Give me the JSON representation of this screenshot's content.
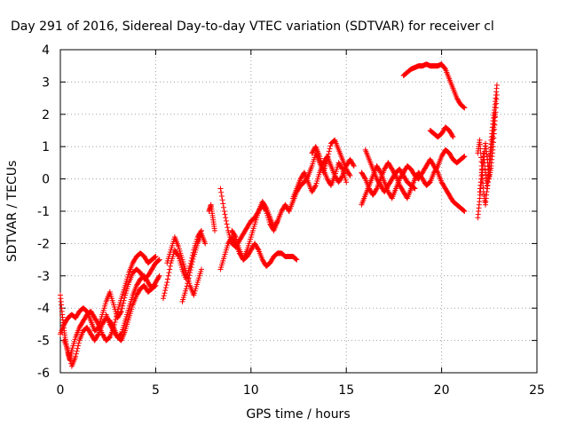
{
  "chart_data": {
    "type": "scatter",
    "title": "Day 291 of 2016, Sidereal Day-to-day VTEC variation (SDTVAR) for receiver cl",
    "xlabel": "GPS time / hours",
    "ylabel": "SDTVAR / TECUs",
    "xlim": [
      0,
      25
    ],
    "ylim": [
      -6,
      4
    ],
    "xticks": [
      0,
      5,
      10,
      15,
      20,
      25
    ],
    "yticks": [
      -6,
      -5,
      -4,
      -3,
      -2,
      -1,
      0,
      1,
      2,
      3,
      4
    ],
    "grid": true,
    "legend": "none",
    "marker": "+",
    "color": "#ff0000",
    "tracks": [
      {
        "x": [
          0.0,
          0.1,
          0.2,
          0.3,
          0.4,
          0.5,
          0.6,
          0.8,
          1.0,
          1.2,
          1.4,
          1.6,
          1.8,
          2.0,
          2.2,
          2.4,
          2.6,
          2.8,
          3.0,
          3.2,
          3.4,
          3.6,
          3.8,
          4.0,
          4.2,
          4.4,
          4.6,
          4.8,
          5.0
        ],
        "y": [
          -3.6,
          -4.2,
          -4.7,
          -5.1,
          -5.4,
          -5.6,
          -5.3,
          -4.9,
          -4.6,
          -4.4,
          -4.2,
          -4.1,
          -4.3,
          -4.5,
          -4.8,
          -5.0,
          -4.9,
          -4.6,
          -4.1,
          -3.7,
          -3.3,
          -2.9,
          -2.6,
          -2.4,
          -2.3,
          -2.4,
          -2.6,
          -2.5,
          -2.4
        ]
      },
      {
        "x": [
          0.0,
          0.2,
          0.4,
          0.6,
          0.8,
          1.0,
          1.2,
          1.4,
          1.6,
          1.8,
          2.0,
          2.2,
          2.4,
          2.6,
          2.8,
          3.0,
          3.2,
          3.4,
          3.6,
          3.8,
          4.0,
          4.2,
          4.4,
          4.6,
          4.8,
          5.0,
          5.2
        ],
        "y": [
          -4.8,
          -4.5,
          -4.3,
          -4.2,
          -4.3,
          -4.1,
          -4.0,
          -4.1,
          -4.4,
          -4.7,
          -4.6,
          -4.2,
          -3.8,
          -3.5,
          -3.9,
          -4.3,
          -4.1,
          -3.6,
          -3.2,
          -2.9,
          -2.8,
          -2.9,
          -3.1,
          -3.0,
          -2.8,
          -2.6,
          -2.5
        ]
      },
      {
        "x": [
          0.2,
          0.4,
          0.6,
          0.8,
          1.0,
          1.2,
          1.4,
          1.6,
          1.8,
          2.0,
          2.2,
          2.4,
          2.6,
          2.8,
          3.0,
          3.2,
          3.4,
          3.6,
          3.8,
          4.0,
          4.2,
          4.4,
          4.6,
          4.8,
          5.0,
          5.2
        ],
        "y": [
          -5.0,
          -5.3,
          -5.8,
          -5.5,
          -5.0,
          -4.7,
          -4.6,
          -4.8,
          -5.0,
          -4.8,
          -4.5,
          -4.3,
          -4.4,
          -4.6,
          -4.9,
          -5.0,
          -4.7,
          -4.3,
          -3.9,
          -3.6,
          -3.4,
          -3.3,
          -3.5,
          -3.4,
          -3.2,
          -3.0
        ]
      },
      {
        "x": [
          2.4,
          2.6,
          2.8,
          3.0,
          3.2,
          3.4,
          3.6,
          3.8,
          4.0,
          4.2,
          4.4,
          4.6,
          4.8,
          5.0
        ],
        "y": [
          -4.2,
          -4.5,
          -4.7,
          -4.9,
          -4.8,
          -4.4,
          -4.0,
          -3.6,
          -3.3,
          -3.1,
          -3.0,
          -3.2,
          -3.4,
          -3.3
        ]
      },
      {
        "x": [
          5.4,
          5.6,
          5.8,
          6.0,
          6.2,
          6.4,
          6.6,
          6.8,
          7.0,
          7.2,
          7.4
        ],
        "y": [
          -3.7,
          -3.2,
          -2.6,
          -2.2,
          -2.4,
          -2.8,
          -3.1,
          -2.7,
          -2.2,
          -1.8,
          -1.6
        ]
      },
      {
        "x": [
          5.6,
          5.8,
          6.0,
          6.2,
          6.4,
          6.6,
          6.8,
          7.0,
          7.2,
          7.4
        ],
        "y": [
          -2.6,
          -2.2,
          -1.8,
          -2.1,
          -2.5,
          -2.9,
          -3.3,
          -3.6,
          -3.2,
          -2.8
        ]
      },
      {
        "x": [
          6.4,
          6.6,
          6.8,
          7.0,
          7.2,
          7.4,
          7.6
        ],
        "y": [
          -3.8,
          -3.4,
          -2.9,
          -2.4,
          -2.0,
          -1.7,
          -2.0
        ]
      },
      {
        "x": [
          7.8,
          7.9,
          8.0,
          8.1
        ],
        "y": [
          -1.0,
          -0.8,
          -1.2,
          -1.6
        ]
      },
      {
        "x": [
          8.4,
          8.6,
          8.8,
          9.0,
          9.2,
          9.4,
          9.6,
          9.8,
          10.0,
          10.2,
          10.4,
          10.6,
          10.8,
          11.0,
          11.2,
          11.4
        ],
        "y": [
          -0.3,
          -1.0,
          -1.6,
          -2.0,
          -2.1,
          -1.9,
          -1.7,
          -1.5,
          -1.3,
          -1.2,
          -1.0,
          -0.8,
          -1.0,
          -1.4,
          -1.6,
          -1.3
        ]
      },
      {
        "x": [
          8.4,
          8.6,
          8.8,
          9.0,
          9.2,
          9.4,
          9.6,
          9.8,
          10.0,
          10.2,
          10.4,
          10.6,
          10.8,
          11.0,
          11.2,
          11.4,
          11.6,
          11.8,
          12.0,
          12.2,
          12.4
        ],
        "y": [
          -2.8,
          -2.4,
          -2.0,
          -1.8,
          -2.0,
          -2.3,
          -2.5,
          -2.4,
          -2.2,
          -2.0,
          -2.2,
          -2.5,
          -2.7,
          -2.6,
          -2.4,
          -2.3,
          -2.3,
          -2.4,
          -2.4,
          -2.4,
          -2.5
        ]
      },
      {
        "x": [
          9.0,
          9.2,
          9.4,
          9.6,
          9.8,
          10.0,
          10.2,
          10.4,
          10.6,
          10.8,
          11.0,
          11.2,
          11.4,
          11.6,
          11.8,
          12.0
        ],
        "y": [
          -1.6,
          -1.8,
          -2.2,
          -2.5,
          -2.2,
          -1.8,
          -1.4,
          -1.0,
          -0.7,
          -0.9,
          -1.2,
          -1.5,
          -1.3,
          -1.0,
          -0.8,
          -1.0
        ]
      },
      {
        "x": [
          12.0,
          12.2,
          12.4,
          12.6,
          12.8,
          13.0,
          13.2,
          13.4,
          13.6,
          13.8,
          14.0,
          14.2,
          14.4,
          14.6,
          14.8,
          15.0,
          15.2
        ],
        "y": [
          -1.0,
          -0.7,
          -0.4,
          -0.2,
          -0.1,
          0.1,
          0.4,
          0.8,
          0.5,
          0.2,
          0.6,
          1.1,
          1.2,
          0.9,
          0.6,
          0.3,
          0.1
        ]
      },
      {
        "x": [
          12.2,
          12.4,
          12.6,
          12.8,
          13.0,
          13.2,
          13.4,
          13.6,
          13.8,
          14.0,
          14.2,
          14.4,
          14.6,
          14.8,
          15.0,
          15.2,
          15.4
        ],
        "y": [
          -0.6,
          -0.3,
          0.0,
          0.2,
          -0.1,
          -0.4,
          -0.2,
          0.2,
          0.5,
          0.7,
          0.4,
          0.1,
          -0.1,
          0.1,
          0.4,
          0.6,
          0.4
        ]
      },
      {
        "x": [
          13.2,
          13.4,
          13.6,
          13.8,
          14.0,
          14.2,
          14.4,
          14.6,
          14.8,
          15.0
        ],
        "y": [
          0.8,
          1.0,
          0.7,
          0.3,
          0.0,
          -0.2,
          0.1,
          0.5,
          0.3,
          -0.1
        ]
      },
      {
        "x": [
          15.8,
          16.0,
          16.2,
          16.4,
          16.6,
          16.8,
          17.0,
          17.2,
          17.4,
          17.6,
          17.8,
          18.0,
          18.2,
          18.4,
          18.6,
          18.8,
          19.0,
          19.2,
          19.4,
          19.6,
          19.8,
          20.0,
          20.2,
          20.4,
          20.6,
          20.8,
          21.0,
          21.2
        ],
        "y": [
          -0.8,
          -0.5,
          -0.2,
          0.1,
          0.4,
          0.2,
          -0.1,
          -0.4,
          -0.6,
          -0.3,
          0.0,
          0.2,
          0.4,
          0.3,
          0.1,
          0.0,
          0.2,
          0.4,
          0.6,
          0.4,
          0.2,
          -0.1,
          -0.3,
          -0.5,
          -0.7,
          -0.8,
          -0.9,
          -1.0
        ]
      },
      {
        "x": [
          15.8,
          16.0,
          16.2,
          16.4,
          16.6,
          16.8,
          17.0,
          17.2,
          17.4,
          17.6,
          17.8,
          18.0,
          18.2,
          18.4,
          18.6,
          18.8,
          19.0,
          19.2,
          19.4,
          19.6,
          19.8,
          20.0,
          20.2,
          20.4,
          20.6,
          20.8,
          21.0,
          21.2
        ],
        "y": [
          0.2,
          0.0,
          -0.3,
          -0.5,
          -0.3,
          0.0,
          0.3,
          0.5,
          0.3,
          0.1,
          -0.2,
          -0.4,
          -0.6,
          -0.3,
          0.0,
          0.2,
          0.0,
          -0.2,
          -0.1,
          0.2,
          0.4,
          0.7,
          0.9,
          0.8,
          0.6,
          0.5,
          0.6,
          0.7
        ]
      },
      {
        "x": [
          16.0,
          16.2,
          16.4,
          16.6,
          16.8,
          17.0,
          17.2,
          17.4,
          17.6,
          17.8,
          18.0,
          18.2,
          18.4,
          18.6
        ],
        "y": [
          0.9,
          0.6,
          0.3,
          0.0,
          -0.2,
          -0.4,
          -0.2,
          0.0,
          0.2,
          0.3,
          0.1,
          -0.1,
          -0.2,
          -0.3
        ]
      },
      {
        "x": [
          18.0,
          18.2,
          18.4,
          18.6,
          18.8,
          19.0,
          19.2,
          19.4,
          19.6,
          19.8,
          20.0,
          20.2,
          20.4,
          20.6,
          20.8,
          21.0,
          21.2
        ],
        "y": [
          3.2,
          3.3,
          3.4,
          3.45,
          3.5,
          3.5,
          3.55,
          3.5,
          3.5,
          3.5,
          3.55,
          3.4,
          3.1,
          2.8,
          2.5,
          2.3,
          2.2
        ]
      },
      {
        "x": [
          19.4,
          19.6,
          19.8,
          20.0,
          20.2,
          20.4,
          20.6
        ],
        "y": [
          1.5,
          1.4,
          1.3,
          1.4,
          1.6,
          1.5,
          1.3
        ]
      },
      {
        "x": [
          21.9,
          22.0,
          22.1,
          22.2,
          22.3,
          22.4,
          22.5,
          22.6,
          22.7,
          22.8,
          22.9
        ],
        "y": [
          -1.2,
          -0.6,
          0.0,
          0.6,
          1.1,
          0.6,
          0.0,
          0.4,
          1.0,
          1.8,
          2.6
        ]
      },
      {
        "x": [
          21.9,
          22.0,
          22.1,
          22.2,
          22.3,
          22.4,
          22.5,
          22.6,
          22.7,
          22.8,
          22.9
        ],
        "y": [
          0.8,
          1.2,
          0.4,
          -0.4,
          -0.8,
          -0.2,
          0.5,
          1.2,
          1.8,
          2.3,
          2.9
        ]
      },
      {
        "x": [
          22.0,
          22.1,
          22.2,
          22.3,
          22.4,
          22.5,
          22.6,
          22.7,
          22.8
        ],
        "y": [
          -0.4,
          0.2,
          0.8,
          0.2,
          -0.3,
          0.3,
          0.9,
          1.4,
          2.0
        ]
      }
    ]
  }
}
